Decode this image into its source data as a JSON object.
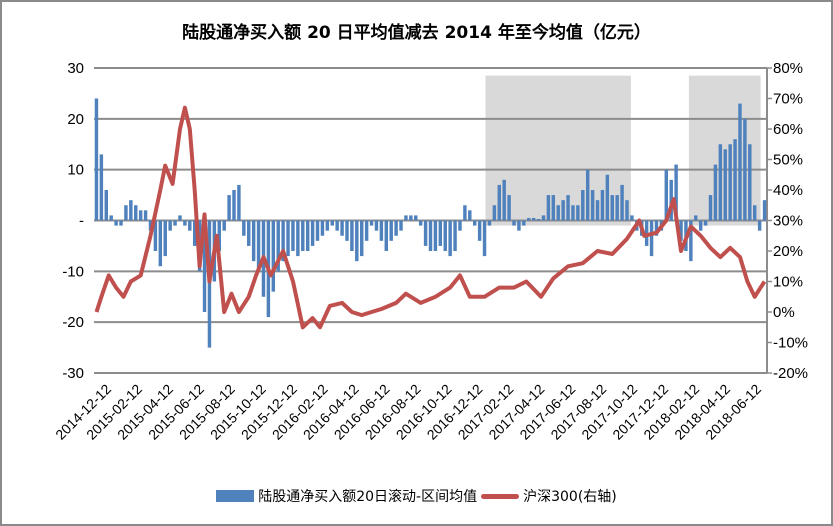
{
  "chart_data": {
    "type": "bar+line",
    "title": "陆股通净买入额 20 日平均值减去 2014 年至今均值（亿元）",
    "left_axis": {
      "min": -30,
      "max": 30,
      "ticks": [
        30,
        20,
        10,
        0,
        -10,
        -20,
        -30
      ],
      "tick_labels": [
        "30",
        "20",
        "10",
        "-",
        "-10",
        "-20",
        "-30"
      ]
    },
    "right_axis": {
      "min": -20,
      "max": 80,
      "tick_labels": [
        "80%",
        "70%",
        "60%",
        "50%",
        "40%",
        "30%",
        "20%",
        "10%",
        "0%",
        "-10%",
        "-20%"
      ],
      "ticks": [
        80,
        70,
        60,
        50,
        40,
        30,
        20,
        10,
        0,
        -10,
        -20
      ]
    },
    "x_tick_labels": [
      "2014-12-12",
      "2015-02-12",
      "2015-04-12",
      "2015-06-12",
      "2015-08-12",
      "2015-10-12",
      "2015-12-12",
      "2016-02-12",
      "2016-04-12",
      "2016-06-12",
      "2016-08-12",
      "2016-10-12",
      "2016-12-12",
      "2017-02-12",
      "2017-04-12",
      "2017-06-12",
      "2017-08-12",
      "2017-10-12",
      "2017-12-12",
      "2018-02-12",
      "2018-04-12",
      "2018-06-12"
    ],
    "grid": "horizontal",
    "legend_placement": "bottom",
    "series": [
      {
        "name": "陆股通净买入额20日滚动-区间均值",
        "type": "bar",
        "axis": "left",
        "color": "#4f81bd",
        "values": [
          24,
          13,
          6,
          1,
          -1,
          -1,
          3,
          4,
          3,
          2,
          2,
          -2,
          -6,
          -9,
          -7,
          -2,
          -1,
          1,
          -1,
          -2,
          -5,
          -10,
          -18,
          -25,
          -12,
          -6,
          -2,
          5,
          6,
          7,
          -3,
          -5,
          -8,
          -10,
          -15,
          -19,
          -14,
          -10,
          -8,
          -7,
          -6,
          -7,
          -6,
          -6,
          -5,
          -4,
          -3,
          -2,
          -1,
          -2,
          -3,
          -4,
          -6,
          -8,
          -7,
          -4,
          -1,
          -2,
          -4,
          -6,
          -4,
          -3,
          -2,
          1,
          1,
          1,
          -1,
          -5,
          -6,
          -6,
          -5,
          -6,
          -7,
          -6,
          -2,
          3,
          2,
          -1,
          -4,
          -7,
          -1,
          3,
          7,
          8,
          5,
          -1,
          -2,
          -1,
          0.5,
          0.5,
          0.3,
          1,
          5,
          5,
          3,
          4,
          5,
          3,
          3,
          6,
          10,
          6,
          4,
          6,
          9,
          5,
          5,
          7,
          4,
          1,
          -2,
          -3,
          -5,
          -7,
          -3,
          -2,
          10,
          8,
          11,
          -4,
          -6,
          -8,
          1,
          -2,
          -1,
          5,
          11,
          15,
          14,
          15,
          16,
          23,
          20,
          15,
          3,
          -2,
          4
        ]
      },
      {
        "name": "沪深300(右轴)",
        "type": "line",
        "axis": "right",
        "color": "#c0504d",
        "x": [
          0,
          1,
          2.5,
          4,
          5.5,
          7,
          9,
          11,
          13,
          14,
          15.5,
          17,
          18,
          19,
          20,
          21,
          22,
          23,
          24.5,
          26,
          27.5,
          29,
          31,
          32.5,
          34,
          35.5,
          38,
          40,
          42,
          44,
          45.5,
          47.5,
          50,
          52,
          54,
          56,
          58,
          61,
          63,
          66,
          69,
          72,
          74,
          76,
          79,
          82,
          85,
          87.5,
          90.5,
          93,
          96,
          99,
          102,
          105,
          108,
          110.5,
          111.5,
          114,
          116,
          117.5,
          119,
          121,
          123,
          125,
          127,
          129,
          131,
          132.5,
          134,
          136
        ],
        "y": [
          0,
          5,
          12,
          8,
          5,
          10,
          12,
          25,
          40,
          48,
          42,
          60,
          67,
          60,
          40,
          15,
          32,
          10,
          25,
          0,
          6,
          0,
          5,
          12,
          18,
          12,
          20,
          10,
          -5,
          -2,
          -5,
          2,
          3,
          0,
          -1,
          0,
          1,
          3,
          6,
          3,
          5,
          8,
          12,
          5,
          5,
          8,
          8,
          10,
          5,
          11,
          15,
          16,
          20,
          19,
          24,
          30,
          25,
          26,
          30,
          37,
          20,
          28,
          25,
          21,
          18,
          21,
          18,
          10,
          5,
          10
        ]
      }
    ],
    "shaded_regions": [
      {
        "from_index": 79.2,
        "to_index": 108.8,
        "top": 28.5,
        "bottom": -1
      },
      {
        "from_index": 120.6,
        "to_index": 135.2,
        "top": 28.5,
        "bottom": -1
      }
    ]
  },
  "legend": {
    "bar_label": "陆股通净买入额20日滚动-区间均值",
    "line_label": "沪深300(右轴)"
  }
}
